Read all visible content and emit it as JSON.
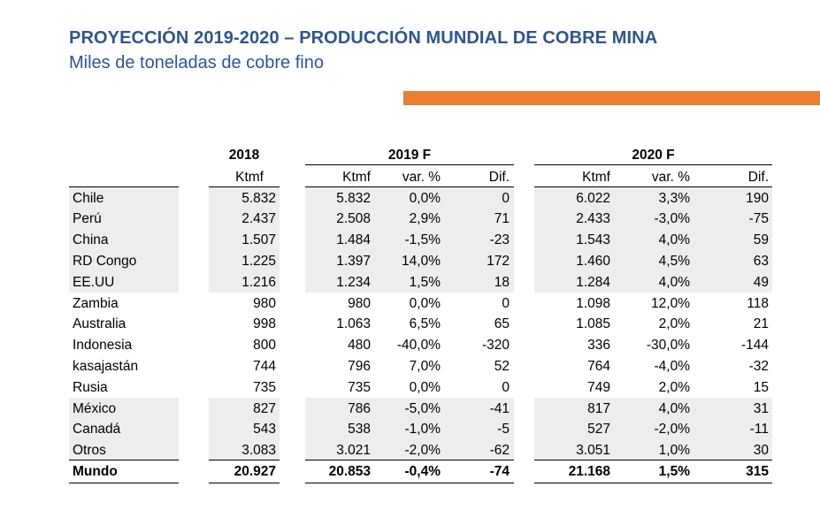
{
  "title": "PROYECCIÓN 2019-2020 – PRODUCCIÓN MUNDIAL DE COBRE MINA",
  "subtitle": "Miles de toneladas de cobre fino",
  "table": {
    "year_headers": {
      "y2018": "2018",
      "y2019": "2019 F",
      "y2020": "2020 F"
    },
    "subheaders": {
      "ktmf_2018": "Ktmf",
      "ktmf_2019": "Ktmf",
      "var_2019": "var. %",
      "dif_2019": "Dif.",
      "ktmf_2020": "Ktmf",
      "var_2020": "var. %",
      "dif_2020": "Dif."
    },
    "rows": [
      {
        "country": "Chile",
        "k2018": "5.832",
        "k2019": "5.832",
        "v2019": "0,0%",
        "d2019": "0",
        "k2020": "6.022",
        "v2020": "3,3%",
        "d2020": "190"
      },
      {
        "country": "Perú",
        "k2018": "2.437",
        "k2019": "2.508",
        "v2019": "2,9%",
        "d2019": "71",
        "k2020": "2.433",
        "v2020": "-3,0%",
        "d2020": "-75"
      },
      {
        "country": "China",
        "k2018": "1.507",
        "k2019": "1.484",
        "v2019": "-1,5%",
        "d2019": "-23",
        "k2020": "1.543",
        "v2020": "4,0%",
        "d2020": "59"
      },
      {
        "country": "RD Congo",
        "k2018": "1.225",
        "k2019": "1.397",
        "v2019": "14,0%",
        "d2019": "172",
        "k2020": "1.460",
        "v2020": "4,5%",
        "d2020": "63"
      },
      {
        "country": "EE.UU",
        "k2018": "1.216",
        "k2019": "1.234",
        "v2019": "1,5%",
        "d2019": "18",
        "k2020": "1.284",
        "v2020": "4,0%",
        "d2020": "49"
      },
      {
        "country": "Zambia",
        "k2018": "980",
        "k2019": "980",
        "v2019": "0,0%",
        "d2019": "0",
        "k2020": "1.098",
        "v2020": "12,0%",
        "d2020": "118"
      },
      {
        "country": "Australia",
        "k2018": "998",
        "k2019": "1.063",
        "v2019": "6,5%",
        "d2019": "65",
        "k2020": "1.085",
        "v2020": "2,0%",
        "d2020": "21"
      },
      {
        "country": "Indonesia",
        "k2018": "800",
        "k2019": "480",
        "v2019": "-40,0%",
        "d2019": "-320",
        "k2020": "336",
        "v2020": "-30,0%",
        "d2020": "-144"
      },
      {
        "country": "kasajastán",
        "k2018": "744",
        "k2019": "796",
        "v2019": "7,0%",
        "d2019": "52",
        "k2020": "764",
        "v2020": "-4,0%",
        "d2020": "-32"
      },
      {
        "country": "Rusia",
        "k2018": "735",
        "k2019": "735",
        "v2019": "0,0%",
        "d2019": "0",
        "k2020": "749",
        "v2020": "2,0%",
        "d2020": "15"
      },
      {
        "country": "México",
        "k2018": "827",
        "k2019": "786",
        "v2019": "-5,0%",
        "d2019": "-41",
        "k2020": "817",
        "v2020": "4,0%",
        "d2020": "31"
      },
      {
        "country": "Canadá",
        "k2018": "543",
        "k2019": "538",
        "v2019": "-1,0%",
        "d2019": "-5",
        "k2020": "527",
        "v2020": "-2,0%",
        "d2020": "-11"
      },
      {
        "country": "Otros",
        "k2018": "3.083",
        "k2019": "3.021",
        "v2019": "-2,0%",
        "d2019": "-62",
        "k2020": "3.051",
        "v2020": "1,0%",
        "d2020": "30"
      }
    ],
    "total": {
      "country": "Mundo",
      "k2018": "20.927",
      "k2019": "20.853",
      "v2019": "-0,4%",
      "d2019": "-74",
      "k2020": "21.168",
      "v2020": "1,5%",
      "d2020": "315"
    },
    "shaded_rows": [
      0,
      1,
      2,
      3,
      4,
      10,
      11,
      12
    ]
  }
}
